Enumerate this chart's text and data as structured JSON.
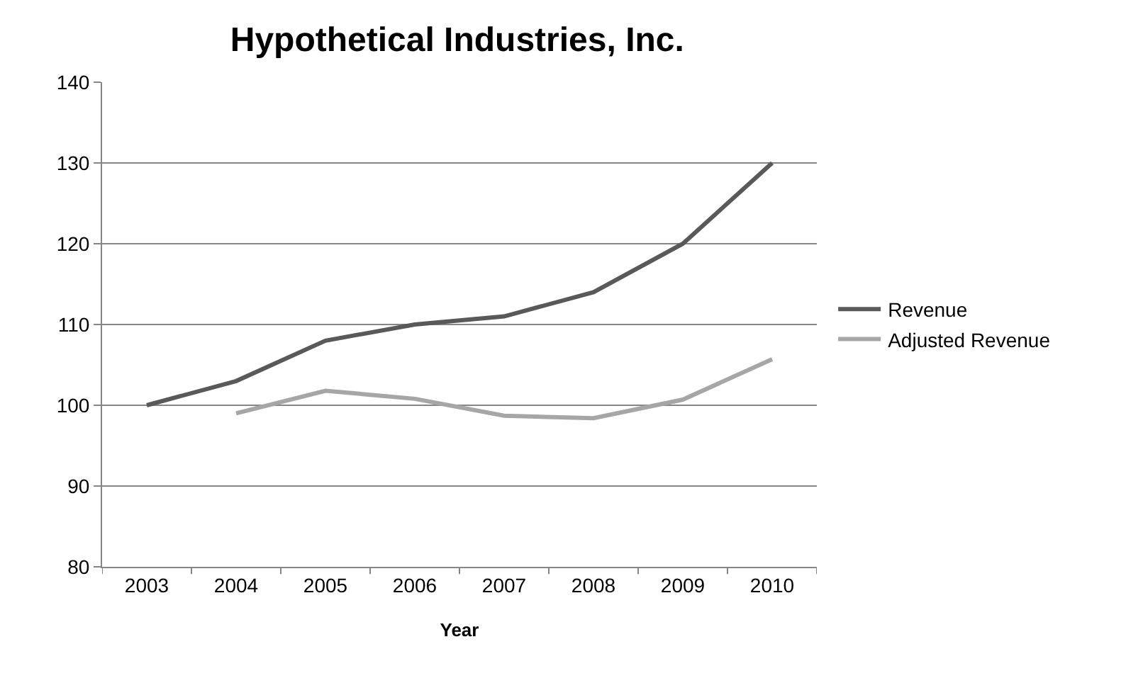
{
  "chart_data": {
    "type": "line",
    "title": "Hypothetical Industries, Inc.",
    "xlabel": "Year",
    "categories": [
      "2003",
      "2004",
      "2005",
      "2006",
      "2007",
      "2008",
      "2009",
      "2010"
    ],
    "series": [
      {
        "name": "Revenue",
        "color": "#595959",
        "values": [
          100,
          103,
          108,
          110,
          111,
          114,
          120,
          130
        ]
      },
      {
        "name": "Adjusted Revenue",
        "color": "#a6a6a6",
        "values": [
          null,
          99,
          101.8,
          100.8,
          98.7,
          98.4,
          100.7,
          105.7
        ]
      }
    ],
    "ylim": [
      80,
      140
    ],
    "yticks": [
      80,
      90,
      100,
      110,
      120,
      130,
      140
    ],
    "grid": "y",
    "legend": "right",
    "marker": "none",
    "line_style": "solid"
  }
}
